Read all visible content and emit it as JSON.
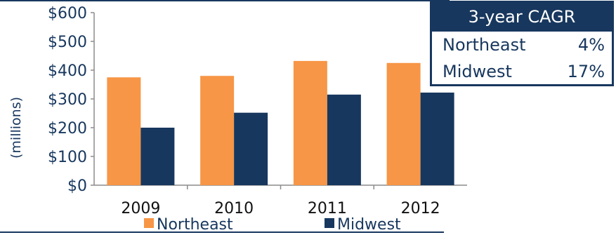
{
  "chart_data": {
    "type": "bar",
    "categories": [
      "2009",
      "2010",
      "2011",
      "2012"
    ],
    "series": [
      {
        "name": "Northeast",
        "color": "#f79646",
        "values": [
          375,
          380,
          432,
          425
        ]
      },
      {
        "name": "Midwest",
        "color": "#17375e",
        "values": [
          200,
          252,
          315,
          322
        ]
      }
    ],
    "ylabel": "(millions)",
    "ylim": [
      0,
      600
    ],
    "yticks": [
      "$0",
      "$100",
      "$200",
      "$300",
      "$400",
      "$500",
      "$600"
    ],
    "grid": false,
    "legend": "bottom"
  },
  "cagr_table": {
    "title": "3-year CAGR",
    "rows": [
      {
        "region": "Northeast",
        "value": "4%"
      },
      {
        "region": "Midwest",
        "value": "17%"
      }
    ]
  }
}
